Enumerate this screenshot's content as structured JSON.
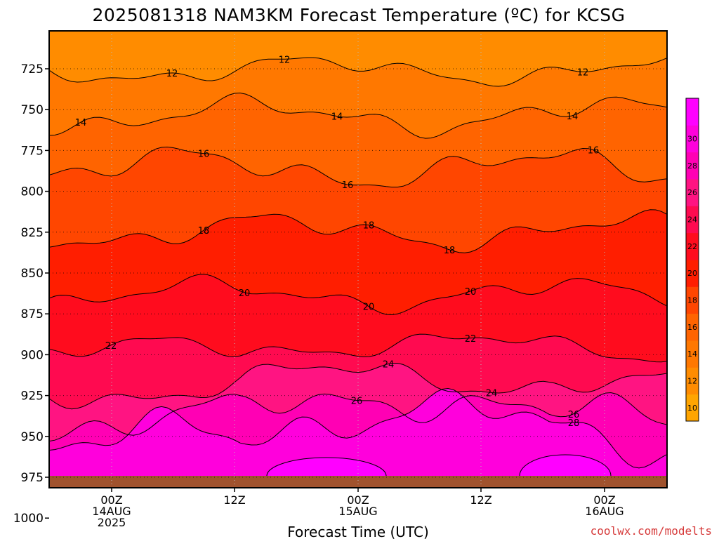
{
  "chart_data": {
    "type": "heatmap",
    "title": "2025081318 NAM3KM Forecast Temperature (ºC) for KCSG",
    "xlabel": "Forecast Time (UTC)",
    "ylabel": "",
    "y_ticks": [
      725,
      750,
      775,
      800,
      825,
      850,
      875,
      900,
      925,
      950,
      975,
      1000
    ],
    "ylim": [
      1000,
      700
    ],
    "x_ticks": [
      {
        "lines": [
          "00Z",
          "14AUG",
          "2025"
        ]
      },
      {
        "lines": [
          "12Z"
        ]
      },
      {
        "lines": [
          "00Z",
          "15AUG"
        ]
      },
      {
        "lines": [
          "12Z"
        ]
      },
      {
        "lines": [
          "00Z",
          "16AUG"
        ]
      }
    ],
    "colorbar": {
      "levels": [
        10,
        12,
        14,
        16,
        18,
        20,
        22,
        24,
        26,
        28,
        30
      ],
      "colors": [
        "#ffa500",
        "#ff8c00",
        "#ff7800",
        "#ff6400",
        "#ff4600",
        "#ff1e00",
        "#ff0c1e",
        "#ff0a50",
        "#ff1482",
        "#ff00b4",
        "#ff00dc",
        "#ff00ff"
      ]
    },
    "isotherm_temperatures": [
      12,
      14,
      16,
      18,
      20,
      22,
      24,
      26,
      28
    ],
    "contour_labels": [
      {
        "text": "12"
      },
      {
        "text": "12"
      },
      {
        "text": "12"
      },
      {
        "text": "14"
      },
      {
        "text": "14"
      },
      {
        "text": "14"
      },
      {
        "text": "16"
      },
      {
        "text": "16"
      },
      {
        "text": "16"
      },
      {
        "text": "18"
      },
      {
        "text": "18"
      },
      {
        "text": "18"
      },
      {
        "text": "20"
      },
      {
        "text": "20"
      },
      {
        "text": "20"
      },
      {
        "text": "22"
      },
      {
        "text": "22"
      },
      {
        "text": "24"
      },
      {
        "text": "24"
      },
      {
        "text": "26"
      },
      {
        "text": "26"
      },
      {
        "text": "28"
      }
    ],
    "grid": true,
    "ground_color": "#a0522d"
  },
  "watermark": "coolwx.com/modelts"
}
